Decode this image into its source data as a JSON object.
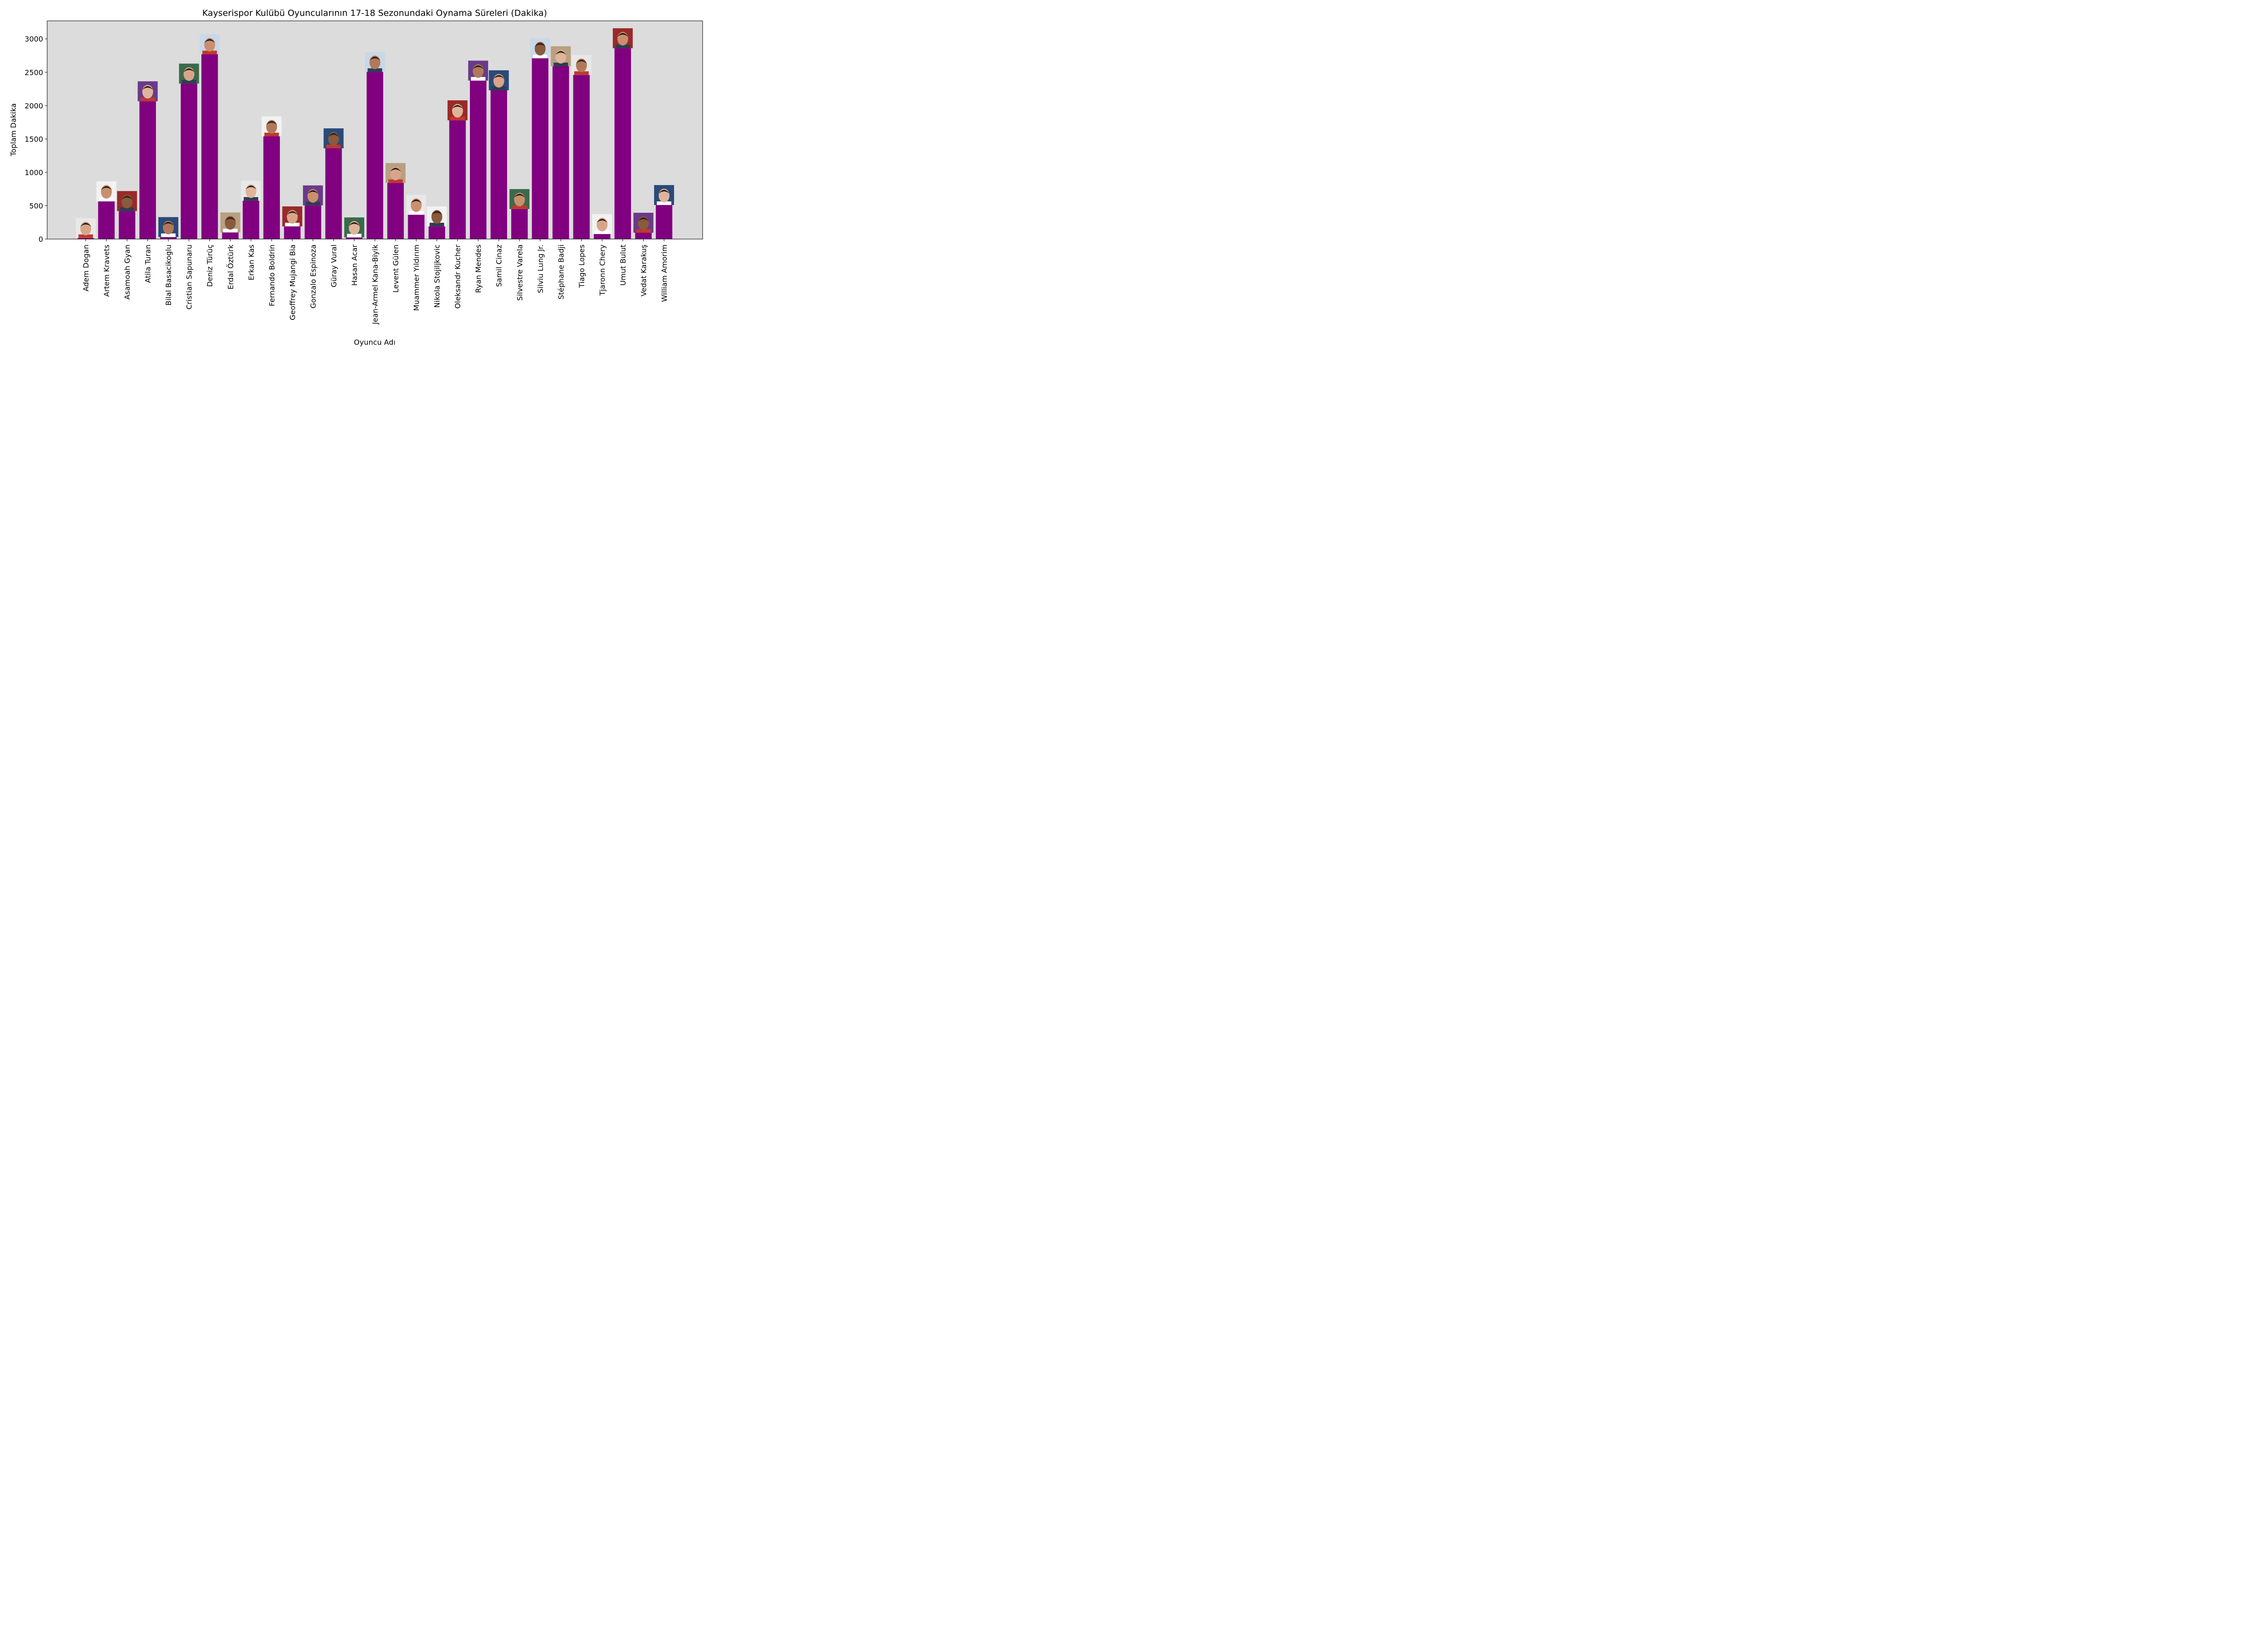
{
  "chart_data": {
    "type": "bar",
    "title": "Kayserispor Kulübü Oyuncularının 17-18 Sezonundaki Oynama Süreleri (Dakika)",
    "xlabel": "Oyuncu Adı",
    "ylabel": "Toplam Dakika",
    "ylim": [
      0,
      3270
    ],
    "yticks": [
      0,
      500,
      1000,
      1500,
      2000,
      2500,
      3000
    ],
    "grid": false,
    "legend": "none",
    "categories": [
      "Adem Dogan",
      "Artem Kravets",
      "Asamoah Gyan",
      "Atila Turan",
      "Bilal Basacikoglu",
      "Cristian Sapunaru",
      "Deniz Türüç",
      "Erdal Öztürk",
      "Erkan Kas",
      "Fernando Boldrin",
      "Geoffrey Mujangi Bia",
      "Gonzalo Espinoza",
      "Güray Vural",
      "Hasan Acar",
      "Jean-Armel Kana-Biyik",
      "Levent Gülen",
      "Muammer Yıldırım",
      "Nikola Stojiljkovic",
      "Oleksandr Kucher",
      "Ryan Mendes",
      "Samil Cinaz",
      "Silvestre Varela",
      "Silviu Lung Jr.",
      "Stéphane Badji",
      "Tiago Lopes",
      "Tjaronn Chery",
      "Umut Bulut",
      "Vedat Karakuş",
      "William Amorim"
    ],
    "values": [
      15,
      565,
      420,
      2065,
      30,
      2330,
      2770,
      100,
      575,
      1540,
      190,
      505,
      1360,
      25,
      2505,
      840,
      365,
      190,
      1780,
      2375,
      2230,
      450,
      2710,
      2590,
      2460,
      75,
      2860,
      95,
      510
    ],
    "colors": {
      "bar": "#800080",
      "plot_background": "#dcdcdc",
      "page_background": "#ffffff"
    },
    "annotations": "player-photo-above-each-bar"
  }
}
